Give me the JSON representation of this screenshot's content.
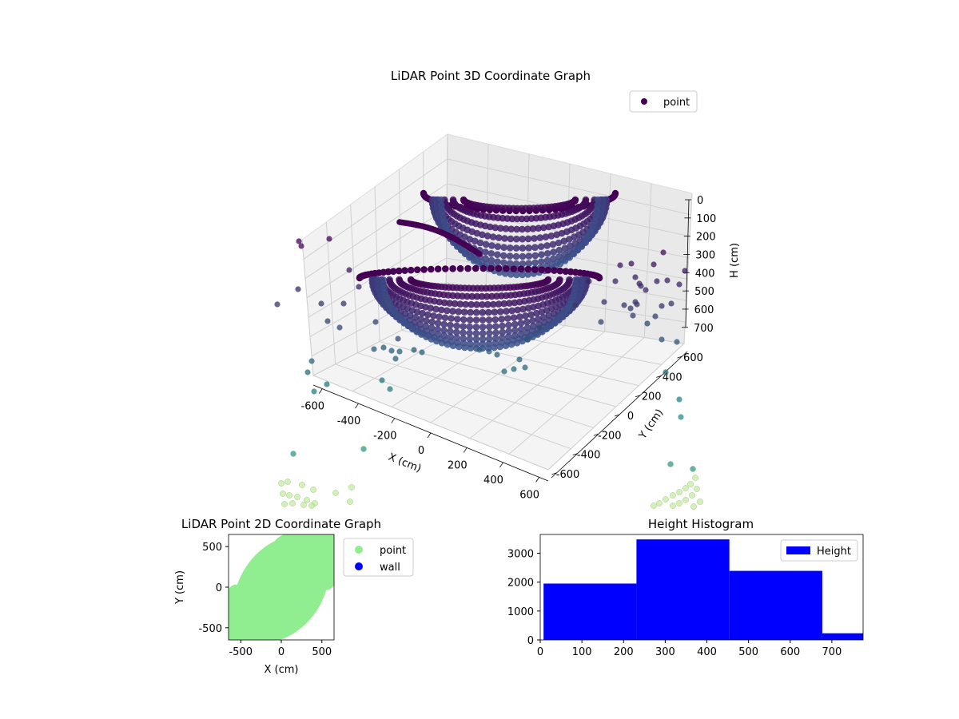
{
  "colors": {
    "scatter_deep": "#440154",
    "scatter_mid": "#3b528b",
    "scatter_teal": "#21918c",
    "scatter_light": "#c2e8a0",
    "point_2d": "#90ee90",
    "wall_2d": "#0000ff",
    "histogram": "#0000ff"
  },
  "chart_data": [
    {
      "id": "scatter3d",
      "type": "scatter",
      "title": "LiDAR Point 3D Coordinate Graph",
      "xlabel": "X (cm)",
      "ylabel": "Y (cm)",
      "zlabel": "H (cm)",
      "xlim": [
        -650,
        650
      ],
      "ylim": [
        -650,
        650
      ],
      "zlim": [
        750,
        0
      ],
      "x_ticks": [
        "-600",
        "-400",
        "-200",
        "0",
        "200",
        "400",
        "600"
      ],
      "y_ticks": [
        "-600",
        "-400",
        "-200",
        "0",
        "200",
        "400",
        "600"
      ],
      "z_ticks": [
        "0",
        "100",
        "200",
        "300",
        "400",
        "500",
        "600",
        "700"
      ],
      "legend": [
        {
          "name": "point",
          "color": "#440154"
        }
      ],
      "legend_position": "top-right",
      "grid": true,
      "colormap": "viridis",
      "shape": "two hemispherical bowls of points with scattered outliers"
    },
    {
      "id": "scatter2d",
      "type": "scatter",
      "title": "LiDAR Point 2D Coordinate Graph",
      "xlabel": "X (cm)",
      "ylabel": "Y (cm)",
      "xlim": [
        -650,
        650
      ],
      "ylim": [
        -650,
        650
      ],
      "x_ticks": [
        -500,
        0,
        500
      ],
      "y_ticks": [
        -500,
        0,
        500
      ],
      "series": [
        {
          "name": "point",
          "color": "#90ee90"
        },
        {
          "name": "wall",
          "color": "#0000ff"
        }
      ],
      "legend_position": "outside-right"
    },
    {
      "id": "histogram",
      "type": "bar",
      "title": "Height Histogram",
      "xlabel": "",
      "ylabel": "",
      "xlim": [
        0,
        775
      ],
      "ylim": [
        0,
        3650
      ],
      "x_ticks": [
        0,
        100,
        200,
        300,
        400,
        500,
        600,
        700
      ],
      "y_ticks": [
        0,
        1000,
        2000,
        3000
      ],
      "bins": [
        {
          "start": 8,
          "end": 231,
          "value": 1950
        },
        {
          "start": 231,
          "end": 454,
          "value": 3480
        },
        {
          "start": 454,
          "end": 677,
          "value": 2390
        },
        {
          "start": 677,
          "end": 775,
          "value": 230
        }
      ],
      "legend": [
        {
          "name": "Height",
          "color": "#0000ff"
        }
      ],
      "legend_position": "top-right"
    }
  ]
}
